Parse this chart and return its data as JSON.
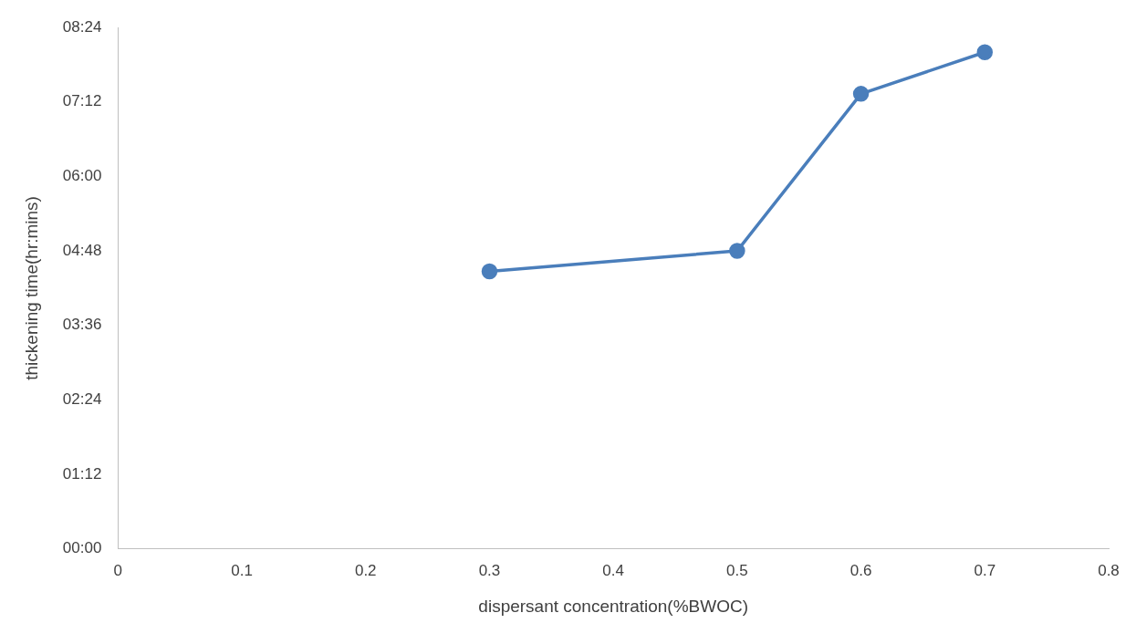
{
  "chart_data": {
    "type": "line",
    "xlabel": "dispersant concentration(%BWOC)",
    "ylabel": "thickening time(hr:mins)",
    "x": [
      0.3,
      0.5,
      0.6,
      0.7
    ],
    "series": [
      {
        "color": "#4a7ebb",
        "values": [
          4.47,
          4.8,
          7.33,
          8.0
        ]
      }
    ],
    "xlim": [
      0,
      0.8
    ],
    "xticks": [
      0,
      0.1,
      0.2,
      0.3,
      0.4,
      0.5,
      0.6,
      0.7,
      0.8
    ],
    "ylim": [
      0,
      8.4
    ],
    "yticks": [
      {
        "value": 0,
        "label": "00:00"
      },
      {
        "value": 1.2,
        "label": "01:12"
      },
      {
        "value": 2.4,
        "label": "02:24"
      },
      {
        "value": 3.6,
        "label": "03:36"
      },
      {
        "value": 4.8,
        "label": "04:48"
      },
      {
        "value": 6,
        "label": "06:00"
      },
      {
        "value": 7.2,
        "label": "07:12"
      },
      {
        "value": 8.4,
        "label": "08:24"
      }
    ],
    "grid": false,
    "legend": false,
    "marker": "circle",
    "line_style": "solid"
  }
}
